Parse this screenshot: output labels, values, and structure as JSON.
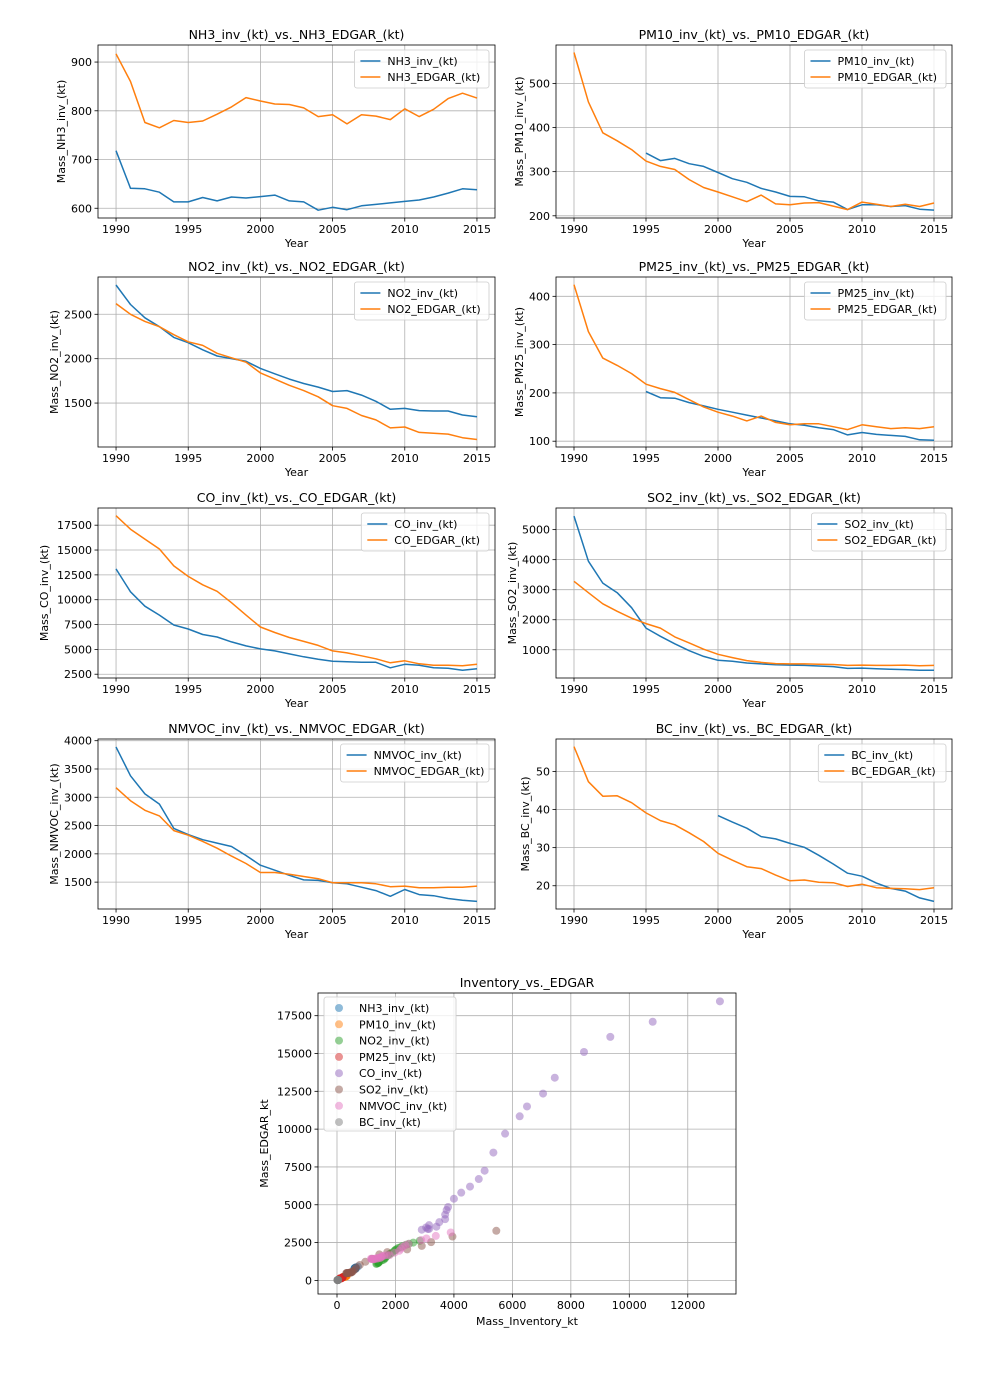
{
  "chart_data": [
    {
      "type": "line",
      "title": "NH3_inv_(kt)_vs._NH3_EDGAR_(kt)",
      "xlabel": "Year",
      "ylabel": "Mass_NH3_inv_(kt)",
      "x": [
        1990,
        1991,
        1992,
        1993,
        1994,
        1995,
        1996,
        1997,
        1998,
        1999,
        2000,
        2001,
        2002,
        2003,
        2004,
        2005,
        2006,
        2007,
        2008,
        2009,
        2010,
        2011,
        2012,
        2013,
        2014,
        2015
      ],
      "xticks": [
        1990,
        1995,
        2000,
        2005,
        2010,
        2015
      ],
      "yticks": [
        600,
        700,
        800,
        900
      ],
      "ylim": [
        580,
        935
      ],
      "grid": true,
      "legend": "upper right",
      "series": [
        {
          "name": "NH3_inv_(kt)",
          "color": "#1f77b4",
          "values": [
            718,
            641,
            640,
            633,
            613,
            613,
            622,
            615,
            623,
            621,
            624,
            627,
            615,
            613,
            596,
            602,
            597,
            605,
            608,
            611,
            614,
            617,
            623,
            631,
            640,
            638
          ]
        },
        {
          "name": "NH3_EDGAR_(kt)",
          "color": "#ff7f0e",
          "values": [
            917,
            860,
            776,
            765,
            780,
            776,
            779,
            793,
            808,
            827,
            820,
            814,
            813,
            806,
            788,
            792,
            773,
            792,
            789,
            782,
            804,
            788,
            803,
            825,
            836,
            826
          ]
        }
      ]
    },
    {
      "type": "line",
      "title": "PM10_inv_(kt)_vs._PM10_EDGAR_(kt)",
      "xlabel": "Year",
      "ylabel": "Mass_PM10_inv_(kt)",
      "x": [
        1990,
        1991,
        1992,
        1993,
        1994,
        1995,
        1996,
        1997,
        1998,
        1999,
        2000,
        2001,
        2002,
        2003,
        2004,
        2005,
        2006,
        2007,
        2008,
        2009,
        2010,
        2011,
        2012,
        2013,
        2014,
        2015
      ],
      "xticks": [
        1990,
        1995,
        2000,
        2005,
        2010,
        2015
      ],
      "yticks": [
        200,
        300,
        400,
        500
      ],
      "ylim": [
        195,
        587
      ],
      "grid": true,
      "legend": "upper right",
      "series": [
        {
          "name": "PM10_inv_(kt)",
          "color": "#1f77b4",
          "values": [
            null,
            null,
            null,
            null,
            null,
            342,
            325,
            330,
            318,
            312,
            298,
            284,
            276,
            262,
            254,
            244,
            243,
            234,
            231,
            214,
            225,
            225,
            221,
            223,
            215,
            213
          ]
        },
        {
          "name": "PM10_EDGAR_(kt)",
          "color": "#ff7f0e",
          "values": [
            570,
            458,
            388,
            370,
            350,
            324,
            312,
            305,
            282,
            264,
            254,
            243,
            232,
            247,
            227,
            225,
            229,
            230,
            222,
            214,
            231,
            226,
            221,
            226,
            221,
            229
          ]
        }
      ]
    },
    {
      "type": "line",
      "title": "NO2_inv_(kt)_vs._NO2_EDGAR_(kt)",
      "xlabel": "Year",
      "ylabel": "Mass_NO2_inv_(kt)",
      "x": [
        1990,
        1991,
        1992,
        1993,
        1994,
        1995,
        1996,
        1997,
        1998,
        1999,
        2000,
        2001,
        2002,
        2003,
        2004,
        2005,
        2006,
        2007,
        2008,
        2009,
        2010,
        2011,
        2012,
        2013,
        2014,
        2015
      ],
      "xticks": [
        1990,
        1995,
        2000,
        2005,
        2010,
        2015
      ],
      "yticks": [
        1500,
        2000,
        2500
      ],
      "ylim": [
        1005,
        2920
      ],
      "grid": true,
      "legend": "upper right",
      "series": [
        {
          "name": "NO2_inv_(kt)",
          "color": "#1f77b4",
          "values": [
            2830,
            2610,
            2460,
            2360,
            2240,
            2180,
            2100,
            2030,
            2000,
            1970,
            1890,
            1830,
            1770,
            1720,
            1680,
            1630,
            1640,
            1590,
            1520,
            1430,
            1440,
            1415,
            1410,
            1410,
            1365,
            1345
          ]
        },
        {
          "name": "NO2_EDGAR_(kt)",
          "color": "#ff7f0e",
          "values": [
            2620,
            2500,
            2420,
            2360,
            2270,
            2190,
            2150,
            2060,
            2010,
            1960,
            1840,
            1770,
            1700,
            1640,
            1570,
            1470,
            1440,
            1360,
            1310,
            1220,
            1230,
            1170,
            1160,
            1150,
            1110,
            1090
          ]
        }
      ]
    },
    {
      "type": "line",
      "title": "PM25_inv_(kt)_vs._PM25_EDGAR_(kt)",
      "xlabel": "Year",
      "ylabel": "Mass_PM25_inv_(kt)",
      "x": [
        1990,
        1991,
        1992,
        1993,
        1994,
        1995,
        1996,
        1997,
        1998,
        1999,
        2000,
        2001,
        2002,
        2003,
        2004,
        2005,
        2006,
        2007,
        2008,
        2009,
        2010,
        2011,
        2012,
        2013,
        2014,
        2015
      ],
      "xticks": [
        1990,
        1995,
        2000,
        2005,
        2010,
        2015
      ],
      "yticks": [
        100,
        200,
        300,
        400
      ],
      "ylim": [
        88,
        440
      ],
      "grid": true,
      "legend": "upper right",
      "series": [
        {
          "name": "PM25_inv_(kt)",
          "color": "#1f77b4",
          "values": [
            null,
            null,
            null,
            null,
            null,
            203,
            190,
            189,
            180,
            173,
            166,
            160,
            154,
            148,
            142,
            136,
            133,
            128,
            124,
            113,
            118,
            114,
            112,
            110,
            103,
            102
          ]
        },
        {
          "name": "PM25_EDGAR_(kt)",
          "color": "#ff7f0e",
          "values": [
            424,
            327,
            272,
            257,
            240,
            218,
            209,
            201,
            186,
            171,
            160,
            152,
            142,
            152,
            139,
            134,
            136,
            136,
            130,
            124,
            134,
            130,
            126,
            128,
            126,
            130
          ]
        }
      ]
    },
    {
      "type": "line",
      "title": "CO_inv_(kt)_vs._CO_EDGAR_(kt)",
      "xlabel": "Year",
      "ylabel": "Mass_CO_inv_(kt)",
      "x": [
        1990,
        1991,
        1992,
        1993,
        1994,
        1995,
        1996,
        1997,
        1998,
        1999,
        2000,
        2001,
        2002,
        2003,
        2004,
        2005,
        2006,
        2007,
        2008,
        2009,
        2010,
        2011,
        2012,
        2013,
        2014,
        2015
      ],
      "xticks": [
        1990,
        1995,
        2000,
        2005,
        2010,
        2015
      ],
      "yticks": [
        2500,
        5000,
        7500,
        10000,
        12500,
        15000,
        17500
      ],
      "ylim": [
        2120,
        19230
      ],
      "grid": true,
      "legend": "upper right",
      "series": [
        {
          "name": "CO_inv_(kt)",
          "color": "#1f77b4",
          "values": [
            13100,
            10800,
            9350,
            8450,
            7450,
            7050,
            6500,
            6250,
            5750,
            5350,
            5050,
            4850,
            4550,
            4250,
            4000,
            3800,
            3750,
            3700,
            3700,
            3150,
            3500,
            3400,
            3150,
            3100,
            2900,
            3050
          ]
        },
        {
          "name": "CO_EDGAR_(kt)",
          "color": "#ff7f0e",
          "values": [
            18450,
            17100,
            16100,
            15100,
            13400,
            12350,
            11500,
            10850,
            9700,
            8450,
            7250,
            6700,
            6200,
            5800,
            5400,
            4850,
            4650,
            4350,
            4050,
            3650,
            3850,
            3550,
            3400,
            3400,
            3350,
            3500
          ]
        }
      ]
    },
    {
      "type": "line",
      "title": "SO2_inv_(kt)_vs._SO2_EDGAR_(kt)",
      "xlabel": "Year",
      "ylabel": "Mass_SO2_inv_(kt)",
      "x": [
        1990,
        1991,
        1992,
        1993,
        1994,
        1995,
        1996,
        1997,
        1998,
        1999,
        2000,
        2001,
        2002,
        2003,
        2004,
        2005,
        2006,
        2007,
        2008,
        2009,
        2010,
        2011,
        2012,
        2013,
        2014,
        2015
      ],
      "xticks": [
        1990,
        1995,
        2000,
        2005,
        2010,
        2015
      ],
      "yticks": [
        1000,
        2000,
        3000,
        4000,
        5000
      ],
      "ylim": [
        60,
        5720
      ],
      "grid": true,
      "legend": "upper right",
      "series": [
        {
          "name": "SO2_inv_(kt)",
          "color": "#1f77b4",
          "values": [
            5450,
            3950,
            3220,
            2900,
            2400,
            1720,
            1450,
            1200,
            970,
            780,
            650,
            620,
            560,
            530,
            500,
            490,
            480,
            460,
            440,
            380,
            390,
            370,
            350,
            340,
            320,
            320
          ]
        },
        {
          "name": "SO2_EDGAR_(kt)",
          "color": "#ff7f0e",
          "values": [
            3280,
            2900,
            2530,
            2280,
            2050,
            1870,
            1720,
            1430,
            1230,
            1020,
            850,
            740,
            640,
            580,
            540,
            530,
            530,
            520,
            510,
            480,
            490,
            480,
            480,
            490,
            470,
            480
          ]
        }
      ]
    },
    {
      "type": "line",
      "title": "NMVOC_inv_(kt)_vs._NMVOC_EDGAR_(kt)",
      "xlabel": "Year",
      "ylabel": "Mass_NMVOC_inv_(kt)",
      "x": [
        1990,
        1991,
        1992,
        1993,
        1994,
        1995,
        1996,
        1997,
        1998,
        1999,
        2000,
        2001,
        2002,
        2003,
        2004,
        2005,
        2006,
        2007,
        2008,
        2009,
        2010,
        2011,
        2012,
        2013,
        2014,
        2015
      ],
      "xticks": [
        1990,
        1995,
        2000,
        2005,
        2010,
        2015
      ],
      "yticks": [
        1500,
        2000,
        2500,
        3000,
        3500,
        4000
      ],
      "ylim": [
        1025,
        4030
      ],
      "grid": true,
      "legend": "upper right",
      "series": [
        {
          "name": "NMVOC_inv_(kt)",
          "color": "#1f77b4",
          "values": [
            3890,
            3380,
            3060,
            2880,
            2450,
            2340,
            2250,
            2190,
            2130,
            1970,
            1800,
            1710,
            1620,
            1540,
            1530,
            1490,
            1470,
            1410,
            1350,
            1250,
            1370,
            1280,
            1260,
            1210,
            1180,
            1160
          ]
        },
        {
          "name": "NMVOC_EDGAR_(kt)",
          "color": "#ff7f0e",
          "values": [
            3170,
            2940,
            2770,
            2670,
            2410,
            2330,
            2220,
            2100,
            1960,
            1830,
            1670,
            1670,
            1640,
            1600,
            1560,
            1490,
            1490,
            1490,
            1470,
            1420,
            1430,
            1400,
            1400,
            1410,
            1410,
            1430
          ]
        }
      ]
    },
    {
      "type": "line",
      "title": "BC_inv_(kt)_vs._BC_EDGAR_(kt)",
      "xlabel": "Year",
      "ylabel": "Mass_BC_inv_(kt)",
      "x": [
        1990,
        1991,
        1992,
        1993,
        1994,
        1995,
        1996,
        1997,
        1998,
        1999,
        2000,
        2001,
        2002,
        2003,
        2004,
        2005,
        2006,
        2007,
        2008,
        2009,
        2010,
        2011,
        2012,
        2013,
        2014,
        2015
      ],
      "xticks": [
        1990,
        1995,
        2000,
        2005,
        2010,
        2015
      ],
      "yticks": [
        20,
        30,
        40,
        50
      ],
      "ylim": [
        13.9,
        58.5
      ],
      "grid": true,
      "legend": "upper right",
      "series": [
        {
          "name": "BC_inv_(kt)",
          "color": "#1f77b4",
          "values": [
            null,
            null,
            null,
            null,
            null,
            null,
            null,
            null,
            null,
            null,
            38.4,
            36.7,
            35.1,
            32.9,
            32.3,
            31.1,
            30.1,
            28.0,
            25.7,
            23.3,
            22.5,
            20.7,
            19.3,
            18.6,
            16.8,
            15.9
          ]
        },
        {
          "name": "BC_EDGAR_(kt)",
          "color": "#ff7f0e",
          "values": [
            56.5,
            47.3,
            43.5,
            43.6,
            41.8,
            39.1,
            37.1,
            36.0,
            33.9,
            31.6,
            28.5,
            26.7,
            25.0,
            24.5,
            22.8,
            21.3,
            21.5,
            20.9,
            20.8,
            19.8,
            20.4,
            19.5,
            19.3,
            19.2,
            19.0,
            19.5
          ]
        }
      ]
    },
    {
      "type": "scatter",
      "title": "Inventory_vs._EDGAR",
      "xlabel": "Mass_Inventory_kt",
      "ylabel": "Mass_EDGAR_kt",
      "xlim": [
        -650,
        13650
      ],
      "ylim": [
        -900,
        19000
      ],
      "xticks": [
        0,
        2000,
        4000,
        6000,
        8000,
        10000,
        12000
      ],
      "yticks": [
        0,
        2500,
        5000,
        7500,
        10000,
        12500,
        15000,
        17500
      ],
      "grid": true,
      "legend": "upper left",
      "alpha": 0.5,
      "series": [
        {
          "name": "NH3_inv_(kt)",
          "color": "#1f77b4"
        },
        {
          "name": "PM10_inv_(kt)",
          "color": "#ff7f0e"
        },
        {
          "name": "NO2_inv_(kt)",
          "color": "#2ca02c"
        },
        {
          "name": "PM25_inv_(kt)",
          "color": "#d62728"
        },
        {
          "name": "CO_inv_(kt)",
          "color": "#9467bd"
        },
        {
          "name": "SO2_inv_(kt)",
          "color": "#8c564b"
        },
        {
          "name": "NMVOC_inv_(kt)",
          "color": "#e377c2"
        },
        {
          "name": "BC_inv_(kt)",
          "color": "#7f7f7f"
        }
      ]
    }
  ]
}
